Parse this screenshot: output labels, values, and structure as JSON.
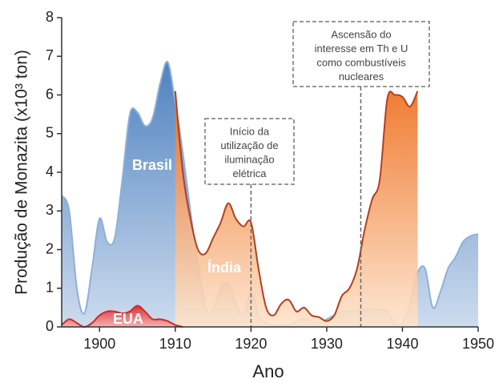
{
  "chart_data": {
    "type": "area",
    "xlabel": "Ano",
    "ylabel": "Produção de Monazita (x10³ ton)",
    "x": [
      1895,
      1896,
      1897,
      1898,
      1899,
      1900,
      1901,
      1902,
      1903,
      1904,
      1905,
      1906,
      1907,
      1908,
      1909,
      1910,
      1911,
      1912,
      1913,
      1914,
      1915,
      1916,
      1917,
      1918,
      1919,
      1920,
      1921,
      1922,
      1923,
      1924,
      1925,
      1926,
      1927,
      1928,
      1929,
      1930,
      1931,
      1932,
      1933,
      1934,
      1935,
      1936,
      1937,
      1938,
      1939,
      1940,
      1941,
      1942,
      1943,
      1944,
      1945,
      1946,
      1947,
      1948,
      1949,
      1950
    ],
    "series": [
      {
        "name": "Brasil",
        "color": "#5b8dc8",
        "values": [
          3.4,
          3.0,
          1.0,
          0.35,
          1.5,
          2.8,
          2.2,
          2.3,
          3.8,
          5.5,
          5.55,
          5.2,
          5.4,
          6.3,
          6.85,
          5.8,
          4.5,
          3.0,
          1.6,
          0.5,
          0.45,
          1.0,
          1.1,
          0.6,
          0.3,
          0.9,
          0.3,
          0.1,
          0.05,
          0.05,
          0.05,
          0.15,
          0.2,
          0.15,
          0.1,
          0.2,
          0.3,
          0.4,
          0.4,
          0.45,
          0.45,
          0.45,
          0.45,
          0.4,
          0.1,
          0.1,
          0.6,
          1.4,
          1.5,
          0.5,
          0.9,
          1.5,
          1.8,
          2.2,
          2.35,
          2.4
        ]
      },
      {
        "name": "Índia",
        "color": "#f07a30",
        "values": [
          null,
          null,
          null,
          null,
          null,
          null,
          null,
          null,
          null,
          null,
          null,
          null,
          null,
          null,
          null,
          6.1,
          4.0,
          2.8,
          2.0,
          1.9,
          2.3,
          2.7,
          3.2,
          2.8,
          2.6,
          2.7,
          1.5,
          0.5,
          0.3,
          0.6,
          0.7,
          0.4,
          0.5,
          0.3,
          0.25,
          0.15,
          0.3,
          0.8,
          1.0,
          1.5,
          2.5,
          3.3,
          3.8,
          5.9,
          6.0,
          5.95,
          5.7,
          6.1,
          null,
          null,
          null,
          null,
          null,
          null,
          null,
          null
        ]
      },
      {
        "name": "EUA",
        "color": "#d83a3a",
        "values": [
          0.05,
          0.2,
          0.1,
          0,
          0.1,
          0.3,
          0.4,
          0.4,
          0.35,
          0.4,
          0.55,
          0.4,
          0.2,
          0.2,
          0.15,
          0.05,
          0,
          null,
          null,
          null,
          null,
          null,
          null,
          null,
          null,
          null,
          null,
          null,
          null,
          null,
          null,
          null,
          null,
          null,
          null,
          null,
          null,
          null,
          null,
          null,
          null,
          null,
          null,
          null,
          null,
          null,
          null,
          null,
          null,
          null,
          null,
          null,
          null,
          null,
          null,
          null
        ]
      }
    ],
    "xlim": [
      1895,
      1950
    ],
    "xticks": [
      1900,
      1910,
      1920,
      1930,
      1940,
      1950
    ],
    "ylim": [
      0,
      8
    ],
    "yticks": [
      0,
      1,
      2,
      3,
      4,
      5,
      6,
      7,
      8
    ],
    "annotations": [
      {
        "x": 1920,
        "lines": [
          "Início da",
          "utilização de",
          "iluminação",
          "elétrica"
        ]
      },
      {
        "x": 1934.5,
        "lines": [
          "Ascensão do",
          "interesse em Th e U",
          "como combustíveis",
          "nucleares"
        ]
      }
    ]
  }
}
